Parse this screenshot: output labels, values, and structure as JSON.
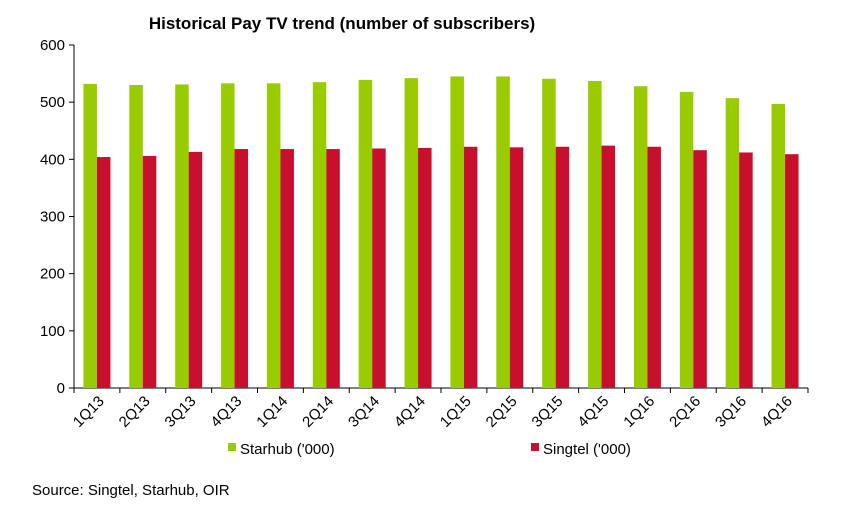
{
  "chart_data": {
    "type": "bar",
    "title": "Historical Pay TV trend (number of subscribers)",
    "xlabel": "",
    "ylabel": "",
    "ylim": [
      0,
      600
    ],
    "yticks": [
      0,
      100,
      200,
      300,
      400,
      500,
      600
    ],
    "grid": false,
    "legend_position": "bottom",
    "categories": [
      "1Q13",
      "2Q13",
      "3Q13",
      "4Q13",
      "1Q14",
      "2Q14",
      "3Q14",
      "4Q14",
      "1Q15",
      "2Q15",
      "3Q15",
      "4Q15",
      "1Q16",
      "2Q16",
      "3Q16",
      "4Q16"
    ],
    "series": [
      {
        "name": "Starhub ('000)",
        "color": "#99cc00",
        "values": [
          532,
          530,
          531,
          533,
          533,
          535,
          539,
          542,
          545,
          545,
          541,
          537,
          528,
          518,
          507,
          497
        ]
      },
      {
        "name": "Singtel ('000)",
        "color": "#c8102e",
        "values": [
          404,
          406,
          413,
          418,
          418,
          418,
          419,
          420,
          422,
          421,
          422,
          424,
          422,
          416,
          412,
          409
        ]
      }
    ],
    "source": "Source: Singtel, Starhub, OIR"
  }
}
